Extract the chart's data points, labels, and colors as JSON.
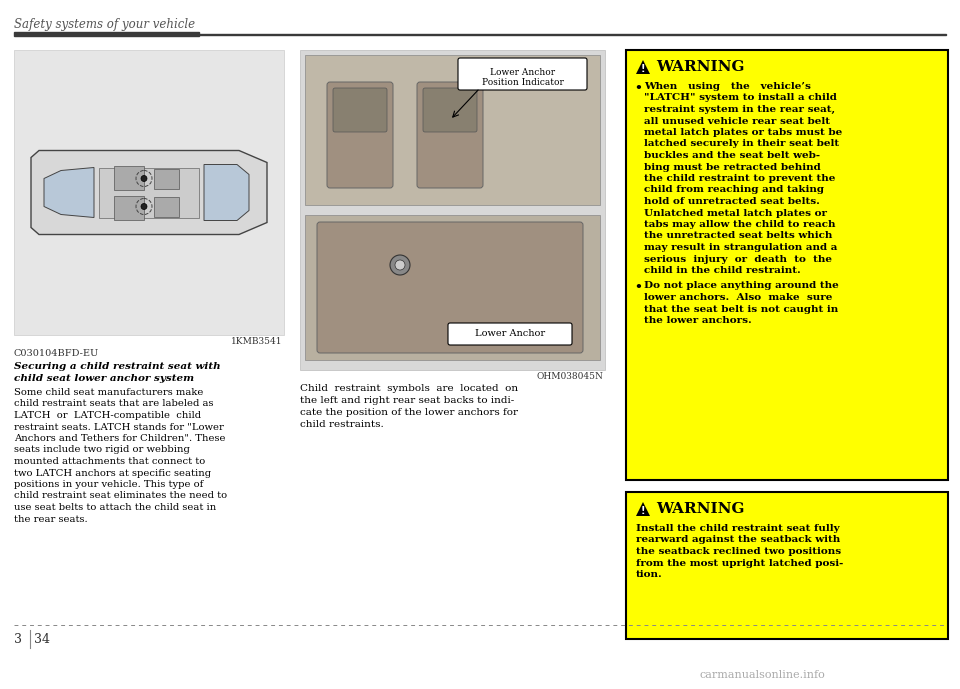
{
  "page_title": "Safety systems of your vehicle",
  "page_number": "34",
  "chapter_number": "3",
  "bg_color": "#ffffff",
  "left_image_caption": "1KMB3541",
  "left_label": "C030104BFD-EU",
  "left_subtitle_line1": "Securing a child restraint seat with",
  "left_subtitle_line2": "child seat lower anchor system",
  "left_body": "Some child seat manufacturers make child restraint seats that are labeled as LATCH  or  LATCH-compatible  child restraint seats. LATCH stands for \"Lower Anchors and Tethers for Children\". These seats include two rigid or webbing mounted attachments that connect to two LATCH anchors at specific seating positions in your vehicle. This type of child restraint seat eliminates the need to use seat belts to attach the child seat in the rear seats.",
  "right_image_caption": "OHM038045N",
  "right_image_label_top": "Lower Anchor\nPosition Indicator",
  "right_image_label_bottom": "Lower Anchor",
  "right_body_line1": "Child  restraint  symbols  are  located  on",
  "right_body_line2": "the left and right rear seat backs to indi-",
  "right_body_line3": "cate the position of the lower anchors for",
  "right_body_line4": "child restraints.",
  "warning1_title": "WARNING",
  "warning1_b1_lines": [
    "When   using   the   vehicle’s",
    "\"LATCH\" system to install a child",
    "restraint system in the rear seat,",
    "all unused vehicle rear seat belt",
    "metal latch plates or tabs must be",
    "latched securely in their seat belt",
    "buckles and the seat belt web-",
    "bing must be retracted behind",
    "the child restraint to prevent the",
    "child from reaching and taking",
    "hold of unretracted seat belts.",
    "Unlatched metal latch plates or",
    "tabs may allow the child to reach",
    "the unretracted seat belts which",
    "may result in strangulation and a",
    "serious  injury  or  death  to  the",
    "child in the child restraint."
  ],
  "warning1_b2_lines": [
    "Do not place anything around the",
    "lower anchors.  Also  make  sure",
    "that the seat belt is not caught in",
    "the lower anchors."
  ],
  "warning2_title": "WARNING",
  "warning2_lines": [
    "Install the child restraint seat fully",
    "rearward against the seatback with",
    "the seatback reclined two positions",
    "from the most upright latched posi-",
    "tion."
  ],
  "warning_bg": "#ffff00",
  "warning_border": "#000000"
}
